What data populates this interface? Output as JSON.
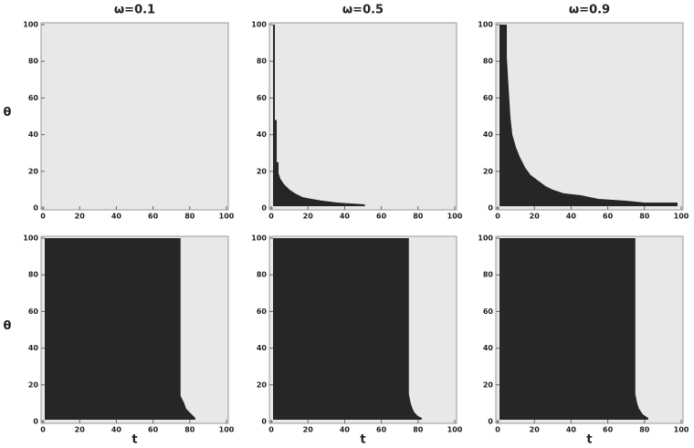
{
  "chart_data": [
    {
      "type": "region",
      "title": "ω=0.1",
      "ylabel": "θ",
      "xlim": [
        0,
        100
      ],
      "ylim": [
        0,
        100
      ],
      "xticks": [
        0,
        20,
        40,
        60,
        80,
        100
      ],
      "yticks": [
        0,
        20,
        40,
        60,
        80,
        100
      ],
      "background": "#e8e8e8",
      "color": "#262626",
      "x": [],
      "values": []
    },
    {
      "type": "region",
      "title": "ω=0.5",
      "xlim": [
        0,
        100
      ],
      "ylim": [
        0,
        100
      ],
      "xticks": [
        0,
        20,
        40,
        60,
        80,
        100
      ],
      "yticks": [
        0,
        20,
        40,
        60,
        80,
        100
      ],
      "background": "#e8e8e8",
      "color": "#262626",
      "x": [
        1,
        1,
        2,
        2,
        3,
        3,
        4,
        4,
        5,
        7,
        10,
        13,
        17,
        22,
        28,
        36,
        51,
        51
      ],
      "values": [
        1,
        100,
        100,
        48,
        48,
        25,
        25,
        19,
        16,
        13,
        10,
        8,
        6,
        5,
        4,
        3,
        2,
        1
      ]
    },
    {
      "type": "region",
      "title": "ω=0.9",
      "xlim": [
        0,
        100
      ],
      "ylim": [
        0,
        100
      ],
      "xticks": [
        0,
        20,
        40,
        60,
        80,
        100
      ],
      "yticks": [
        0,
        20,
        40,
        60,
        80,
        100
      ],
      "background": "#e8e8e8",
      "color": "#262626",
      "x": [
        1,
        1,
        5,
        5,
        6,
        7,
        8,
        10,
        12,
        15,
        18,
        22,
        26,
        30,
        36,
        45,
        55,
        70,
        80,
        98,
        98
      ],
      "values": [
        1,
        100,
        100,
        82,
        65,
        49,
        40,
        33,
        28,
        22,
        18,
        15,
        12,
        10,
        8,
        7,
        5,
        4,
        3,
        3,
        1
      ]
    },
    {
      "type": "region",
      "ylabel": "θ",
      "xlabel": "t",
      "xlim": [
        0,
        100
      ],
      "ylim": [
        0,
        100
      ],
      "xticks": [
        0,
        20,
        40,
        60,
        80,
        100
      ],
      "yticks": [
        0,
        20,
        40,
        60,
        80,
        100
      ],
      "background": "#e8e8e8",
      "color": "#262626",
      "x": [
        1,
        1,
        75,
        75,
        76,
        77,
        78,
        80,
        82,
        83,
        83
      ],
      "values": [
        1,
        100,
        100,
        14,
        12,
        10,
        7,
        5,
        3,
        2,
        1
      ]
    },
    {
      "type": "region",
      "xlabel": "t",
      "xlim": [
        0,
        100
      ],
      "ylim": [
        0,
        100
      ],
      "xticks": [
        0,
        20,
        40,
        60,
        80,
        100
      ],
      "yticks": [
        0,
        20,
        40,
        60,
        80,
        100
      ],
      "background": "#e8e8e8",
      "color": "#262626",
      "x": [
        1,
        1,
        75,
        75,
        76,
        77,
        78,
        80,
        82,
        82
      ],
      "values": [
        1,
        100,
        100,
        15,
        10,
        7,
        5,
        3,
        2,
        1
      ]
    },
    {
      "type": "region",
      "xlabel": "t",
      "xlim": [
        0,
        100
      ],
      "ylim": [
        0,
        100
      ],
      "xticks": [
        0,
        20,
        40,
        60,
        80,
        100
      ],
      "yticks": [
        0,
        20,
        40,
        60,
        80,
        100
      ],
      "background": "#e8e8e8",
      "color": "#262626",
      "x": [
        1,
        1,
        75,
        75,
        76,
        77,
        79,
        82,
        82
      ],
      "values": [
        1,
        100,
        100,
        15,
        10,
        7,
        4,
        2,
        1
      ]
    }
  ]
}
